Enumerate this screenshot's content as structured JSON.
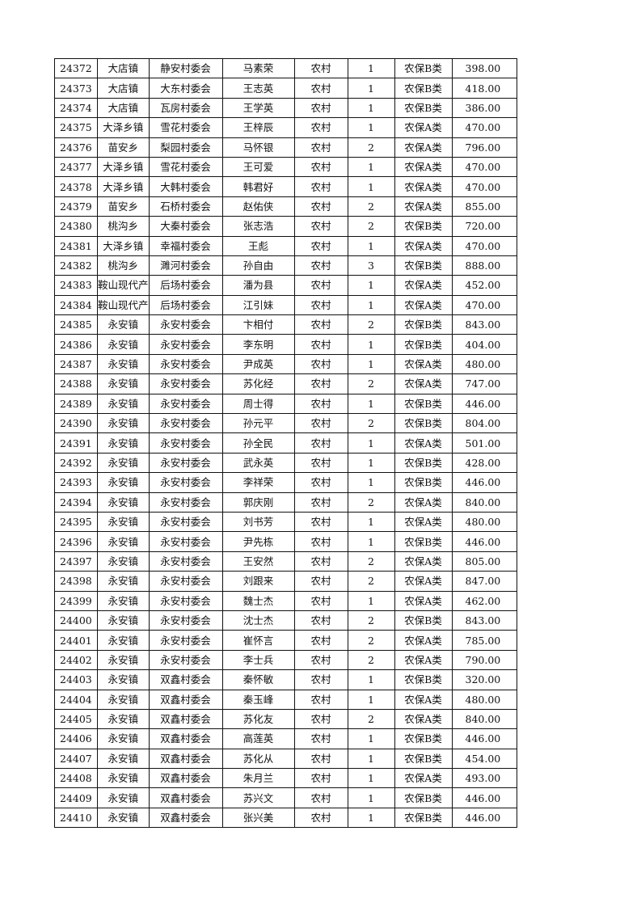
{
  "table": {
    "rows": [
      [
        "24372",
        "大店镇",
        "静安村委会",
        "马素荣",
        "农村",
        "1",
        "农保B类",
        "398.00"
      ],
      [
        "24373",
        "大店镇",
        "大东村委会",
        "王志英",
        "农村",
        "1",
        "农保B类",
        "418.00"
      ],
      [
        "24374",
        "大店镇",
        "瓦房村委会",
        "王学英",
        "农村",
        "1",
        "农保B类",
        "386.00"
      ],
      [
        "24375",
        "大泽乡镇",
        "雪花村委会",
        "王梓辰",
        "农村",
        "1",
        "农保A类",
        "470.00"
      ],
      [
        "24376",
        "苗安乡",
        "梨园村委会",
        "马怀银",
        "农村",
        "2",
        "农保A类",
        "796.00"
      ],
      [
        "24377",
        "大泽乡镇",
        "雪花村委会",
        "王可爱",
        "农村",
        "1",
        "农保A类",
        "470.00"
      ],
      [
        "24378",
        "大泽乡镇",
        "大韩村委会",
        "韩君好",
        "农村",
        "1",
        "农保A类",
        "470.00"
      ],
      [
        "24379",
        "苗安乡",
        "石桥村委会",
        "赵佑侠",
        "农村",
        "2",
        "农保A类",
        "855.00"
      ],
      [
        "24380",
        "桃沟乡",
        "大秦村委会",
        "张志浩",
        "农村",
        "2",
        "农保B类",
        "720.00"
      ],
      [
        "24381",
        "大泽乡镇",
        "幸福村委会",
        "王彪",
        "农村",
        "1",
        "农保A类",
        "470.00"
      ],
      [
        "24382",
        "桃沟乡",
        "濉河村委会",
        "孙自由",
        "农村",
        "3",
        "农保B类",
        "888.00"
      ],
      [
        "24383",
        "鞍山现代产",
        "后场村委会",
        "潘为县",
        "农村",
        "1",
        "农保A类",
        "452.00"
      ],
      [
        "24384",
        "鞍山现代产",
        "后场村委会",
        "江引妹",
        "农村",
        "1",
        "农保A类",
        "470.00"
      ],
      [
        "24385",
        "永安镇",
        "永安村委会",
        "卞相付",
        "农村",
        "2",
        "农保B类",
        "843.00"
      ],
      [
        "24386",
        "永安镇",
        "永安村委会",
        "李东明",
        "农村",
        "1",
        "农保B类",
        "404.00"
      ],
      [
        "24387",
        "永安镇",
        "永安村委会",
        "尹成英",
        "农村",
        "1",
        "农保A类",
        "480.00"
      ],
      [
        "24388",
        "永安镇",
        "永安村委会",
        "苏化经",
        "农村",
        "2",
        "农保A类",
        "747.00"
      ],
      [
        "24389",
        "永安镇",
        "永安村委会",
        "周士得",
        "农村",
        "1",
        "农保B类",
        "446.00"
      ],
      [
        "24390",
        "永安镇",
        "永安村委会",
        "孙元平",
        "农村",
        "2",
        "农保B类",
        "804.00"
      ],
      [
        "24391",
        "永安镇",
        "永安村委会",
        "孙全民",
        "农村",
        "1",
        "农保A类",
        "501.00"
      ],
      [
        "24392",
        "永安镇",
        "永安村委会",
        "武永英",
        "农村",
        "1",
        "农保B类",
        "428.00"
      ],
      [
        "24393",
        "永安镇",
        "永安村委会",
        "李祥荣",
        "农村",
        "1",
        "农保B类",
        "446.00"
      ],
      [
        "24394",
        "永安镇",
        "永安村委会",
        "郭庆刚",
        "农村",
        "2",
        "农保A类",
        "840.00"
      ],
      [
        "24395",
        "永安镇",
        "永安村委会",
        "刘书芳",
        "农村",
        "1",
        "农保A类",
        "480.00"
      ],
      [
        "24396",
        "永安镇",
        "永安村委会",
        "尹先栋",
        "农村",
        "1",
        "农保B类",
        "446.00"
      ],
      [
        "24397",
        "永安镇",
        "永安村委会",
        "王安然",
        "农村",
        "2",
        "农保A类",
        "805.00"
      ],
      [
        "24398",
        "永安镇",
        "永安村委会",
        "刘跟来",
        "农村",
        "2",
        "农保A类",
        "847.00"
      ],
      [
        "24399",
        "永安镇",
        "永安村委会",
        "魏士杰",
        "农村",
        "1",
        "农保A类",
        "462.00"
      ],
      [
        "24400",
        "永安镇",
        "永安村委会",
        "沈士杰",
        "农村",
        "2",
        "农保B类",
        "843.00"
      ],
      [
        "24401",
        "永安镇",
        "永安村委会",
        "崔怀言",
        "农村",
        "2",
        "农保A类",
        "785.00"
      ],
      [
        "24402",
        "永安镇",
        "永安村委会",
        "李士兵",
        "农村",
        "2",
        "农保A类",
        "790.00"
      ],
      [
        "24403",
        "永安镇",
        "双鑫村委会",
        "秦怀敏",
        "农村",
        "1",
        "农保B类",
        "320.00"
      ],
      [
        "24404",
        "永安镇",
        "双鑫村委会",
        "秦玉峰",
        "农村",
        "1",
        "农保A类",
        "480.00"
      ],
      [
        "24405",
        "永安镇",
        "双鑫村委会",
        "苏化友",
        "农村",
        "2",
        "农保A类",
        "840.00"
      ],
      [
        "24406",
        "永安镇",
        "双鑫村委会",
        "高莲英",
        "农村",
        "1",
        "农保B类",
        "446.00"
      ],
      [
        "24407",
        "永安镇",
        "双鑫村委会",
        "苏化从",
        "农村",
        "1",
        "农保B类",
        "454.00"
      ],
      [
        "24408",
        "永安镇",
        "双鑫村委会",
        "朱月兰",
        "农村",
        "1",
        "农保A类",
        "493.00"
      ],
      [
        "24409",
        "永安镇",
        "双鑫村委会",
        "苏兴文",
        "农村",
        "1",
        "农保B类",
        "446.00"
      ],
      [
        "24410",
        "永安镇",
        "双鑫村委会",
        "张兴美",
        "农村",
        "1",
        "农保B类",
        "446.00"
      ]
    ]
  }
}
